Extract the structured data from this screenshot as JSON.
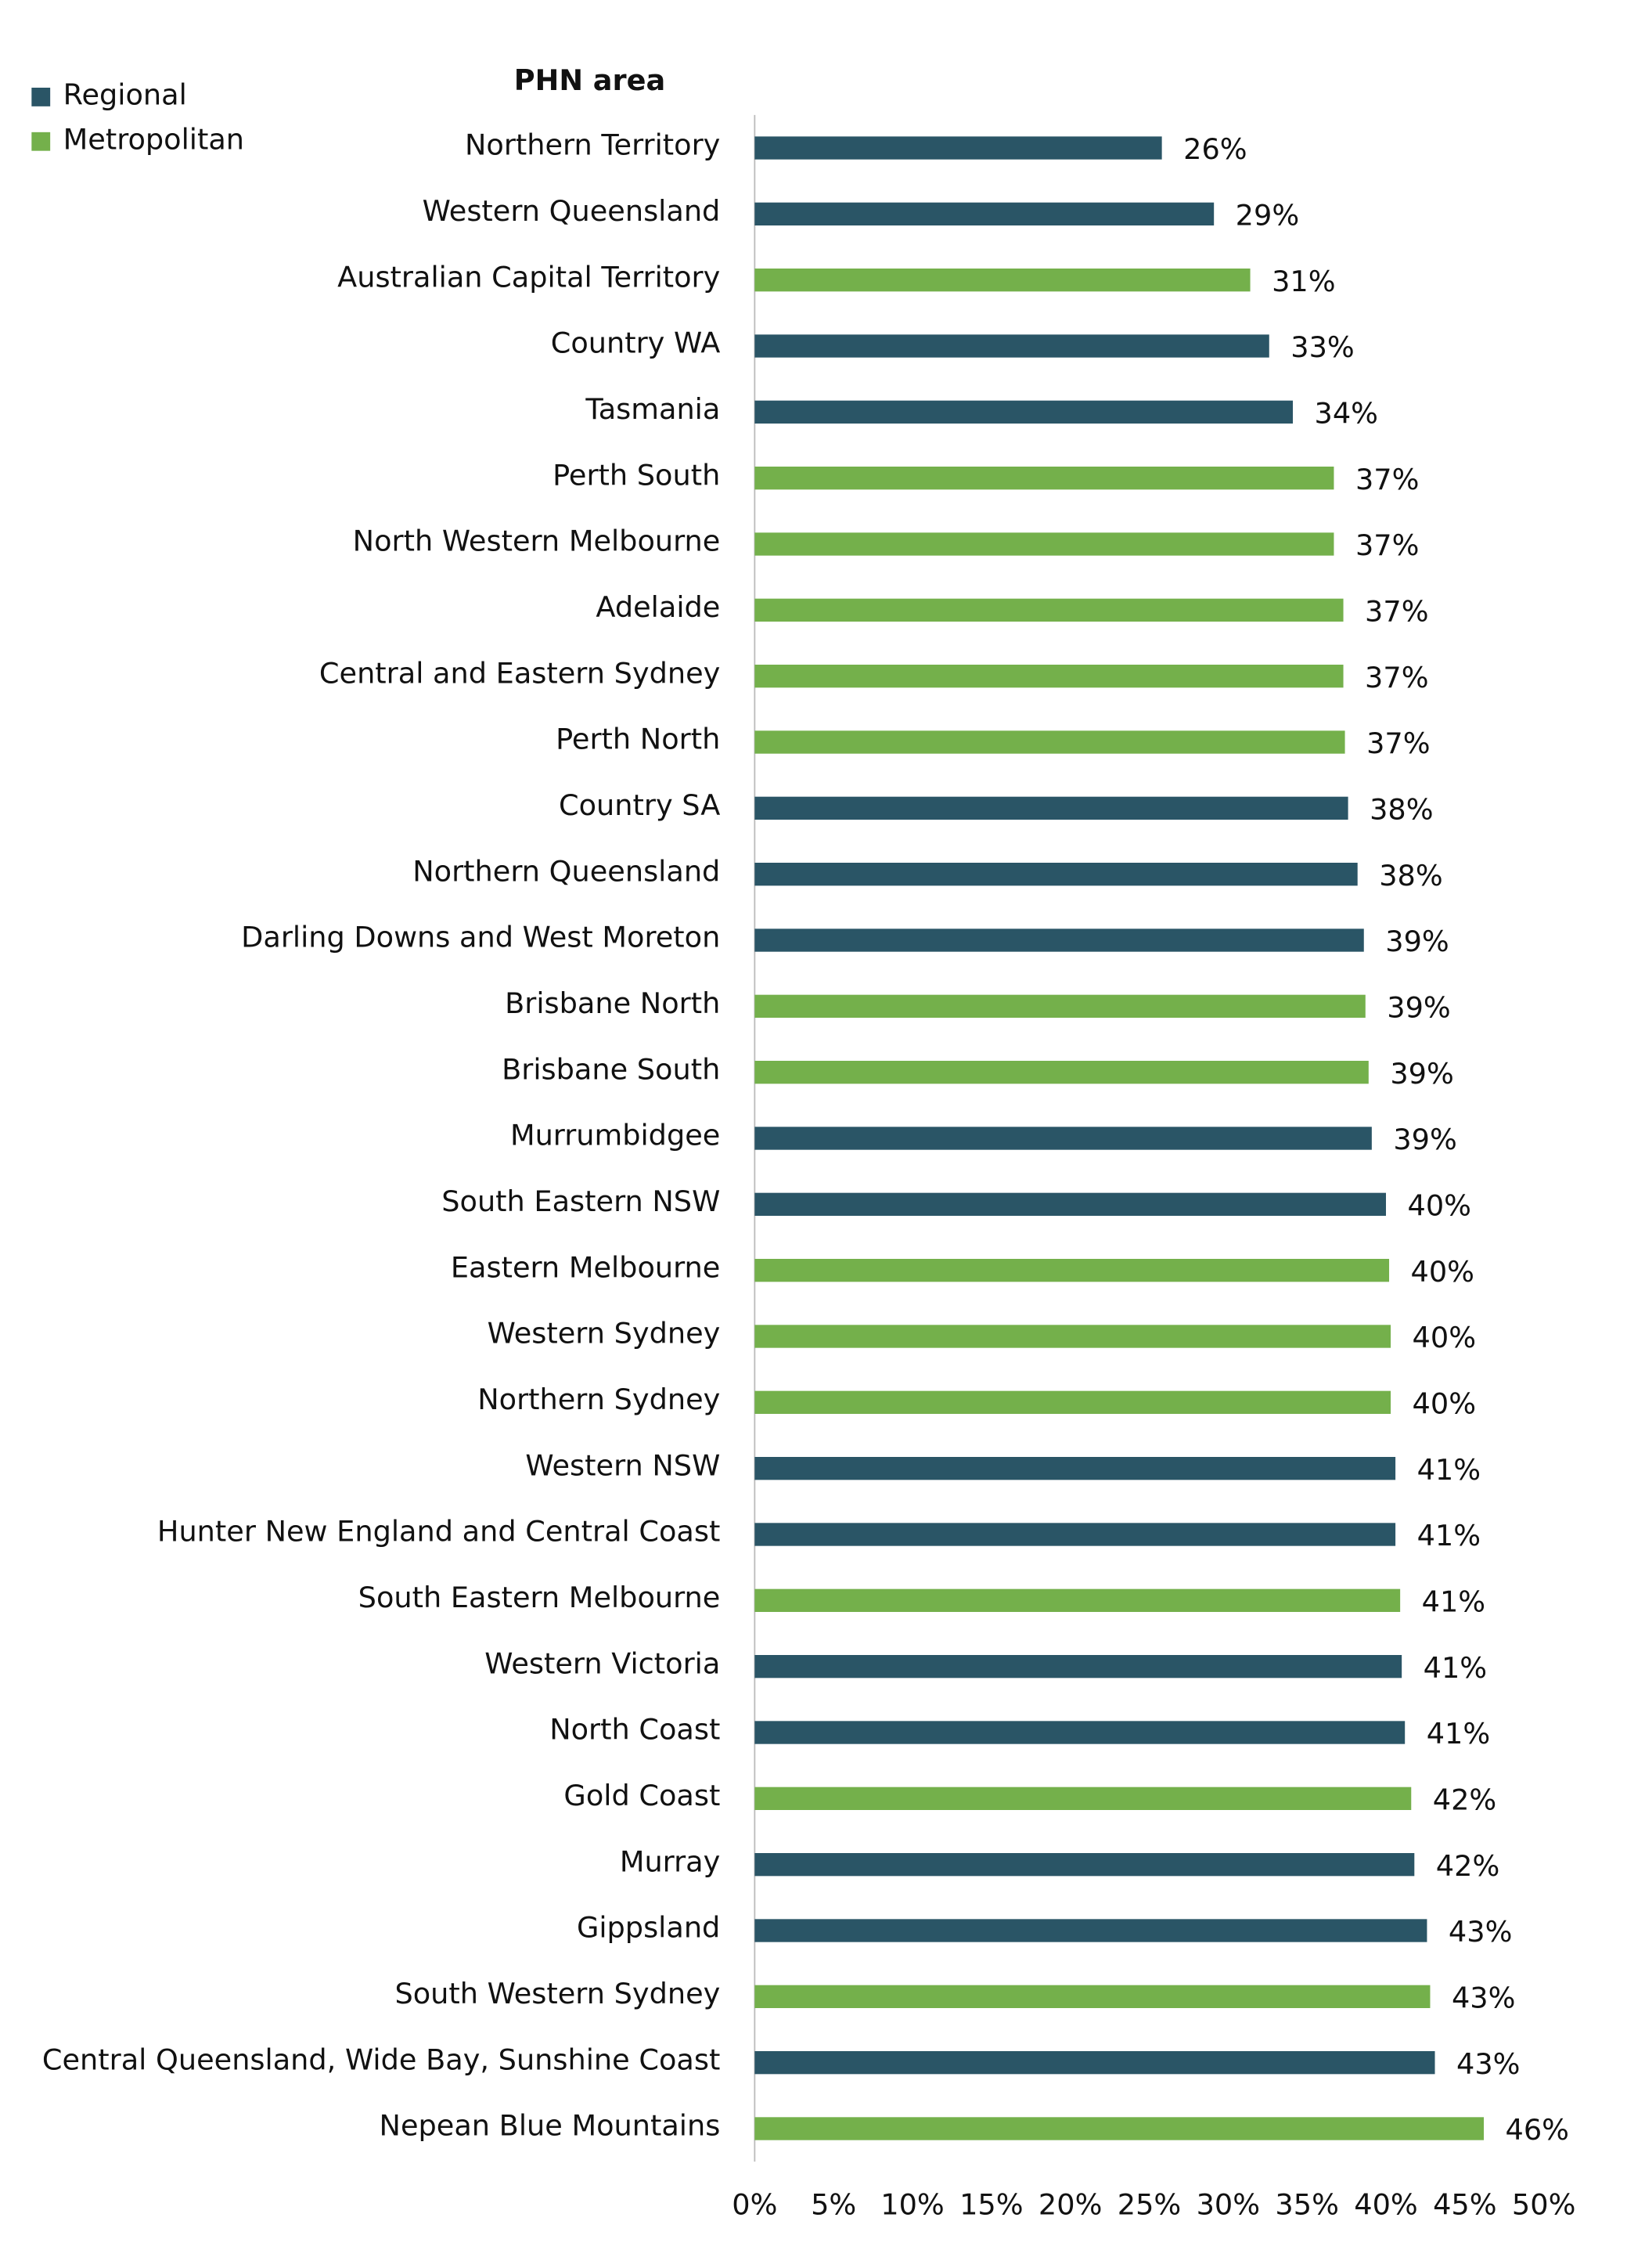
{
  "chart_data": {
    "type": "barh",
    "y_label": "PHN area",
    "categories": [
      "Northern Territory",
      "Western Queensland",
      "Australian Capital Territory",
      "Country WA",
      "Tasmania",
      "Perth South",
      "North Western Melbourne",
      "Adelaide",
      "Central and Eastern Sydney",
      "Perth North",
      "Country SA",
      "Northern Queensland",
      "Darling Downs and West Moreton",
      "Brisbane North",
      "Brisbane South",
      "Murrumbidgee",
      "South Eastern NSW",
      "Eastern Melbourne",
      "Western Sydney",
      "Northern Sydney",
      "Western NSW",
      "Hunter New England and Central Coast",
      "South Eastern Melbourne",
      "Western Victoria",
      "North Coast",
      "Gold Coast",
      "Murray",
      "Gippsland",
      "South Western Sydney",
      "Central Queensland, Wide Bay, Sunshine Coast",
      "Nepean Blue Mountains"
    ],
    "series": [
      {
        "name": "Regional",
        "color": "#2a5566",
        "values": [
          25.8,
          29.1,
          null,
          32.6,
          34.1,
          null,
          null,
          null,
          null,
          null,
          37.6,
          38.2,
          38.6,
          null,
          null,
          39.1,
          40.0,
          null,
          null,
          null,
          40.6,
          40.6,
          null,
          41.0,
          41.2,
          null,
          41.8,
          42.6,
          null,
          43.1,
          null
        ],
        "value_labels": [
          "26%",
          "29%",
          null,
          "33%",
          "34%",
          null,
          null,
          null,
          null,
          null,
          "38%",
          "38%",
          "39%",
          null,
          null,
          "39%",
          "40%",
          null,
          null,
          null,
          "41%",
          "41%",
          null,
          "41%",
          "41%",
          null,
          "42%",
          "43%",
          null,
          "43%",
          null
        ]
      },
      {
        "name": "Metropolitan",
        "color": "#74b04b",
        "values": [
          null,
          null,
          31.4,
          null,
          null,
          36.7,
          36.7,
          37.3,
          37.3,
          37.4,
          null,
          null,
          null,
          38.7,
          38.9,
          null,
          null,
          40.2,
          40.3,
          40.3,
          null,
          null,
          40.9,
          null,
          null,
          41.6,
          null,
          null,
          42.8,
          null,
          46.2
        ],
        "value_labels": [
          null,
          null,
          "31%",
          null,
          null,
          "37%",
          "37%",
          "37%",
          "37%",
          "37%",
          null,
          null,
          null,
          "39%",
          "39%",
          null,
          null,
          "40%",
          "40%",
          "40%",
          null,
          null,
          "41%",
          null,
          null,
          "42%",
          null,
          null,
          "43%",
          null,
          "46%"
        ]
      }
    ],
    "xlim": [
      0,
      50
    ],
    "xticks": [
      {
        "value": 0,
        "label": "0%"
      },
      {
        "value": 5,
        "label": "5%"
      },
      {
        "value": 10,
        "label": "10%"
      },
      {
        "value": 15,
        "label": "15%"
      },
      {
        "value": 20,
        "label": "20%"
      },
      {
        "value": 25,
        "label": "25%"
      },
      {
        "value": 30,
        "label": "30%"
      },
      {
        "value": 35,
        "label": "35%"
      },
      {
        "value": 40,
        "label": "40%"
      },
      {
        "value": 45,
        "label": "45%"
      },
      {
        "value": 50,
        "label": "50%"
      }
    ],
    "legend_position": "upper left"
  }
}
